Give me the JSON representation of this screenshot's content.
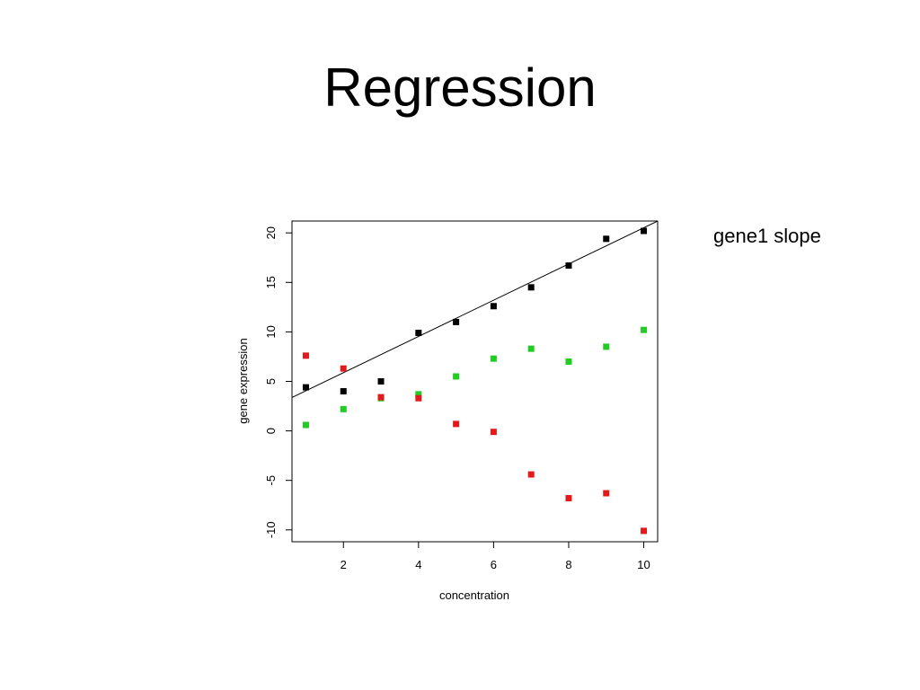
{
  "slide": {
    "title": "Regression",
    "note": "gene1 slope"
  },
  "chart_data": {
    "type": "scatter",
    "xlabel": "concentration",
    "ylabel": "gene expression",
    "xlim": [
      0.63,
      10.37
    ],
    "ylim": [
      -11.2,
      21.2
    ],
    "x_ticks": [
      2,
      4,
      6,
      8,
      10
    ],
    "y_ticks": [
      -10,
      -5,
      0,
      5,
      10,
      15,
      20
    ],
    "grid": false,
    "series": [
      {
        "color": "#000000",
        "x": [
          1,
          2,
          3,
          4,
          5,
          6,
          7,
          8,
          9,
          10
        ],
        "y": [
          4.4,
          4.0,
          5.0,
          9.9,
          11.0,
          12.6,
          14.5,
          16.7,
          19.4,
          20.2
        ]
      },
      {
        "color": "#22cc22",
        "x": [
          1,
          2,
          3,
          4,
          5,
          6,
          7,
          8,
          9,
          10
        ],
        "y": [
          0.6,
          2.2,
          3.3,
          3.7,
          5.5,
          7.3,
          8.3,
          7.0,
          8.5,
          10.2
        ]
      },
      {
        "color": "#e31a1c",
        "x": [
          1,
          2,
          3,
          4,
          5,
          6,
          7,
          8,
          9,
          10
        ],
        "y": [
          7.6,
          6.3,
          3.4,
          3.3,
          0.7,
          -0.1,
          -4.4,
          -6.8,
          -6.3,
          -10.1
        ]
      }
    ],
    "fit_line": {
      "color": "#000000",
      "intercept": 2.22,
      "slope": 1.83
    }
  }
}
